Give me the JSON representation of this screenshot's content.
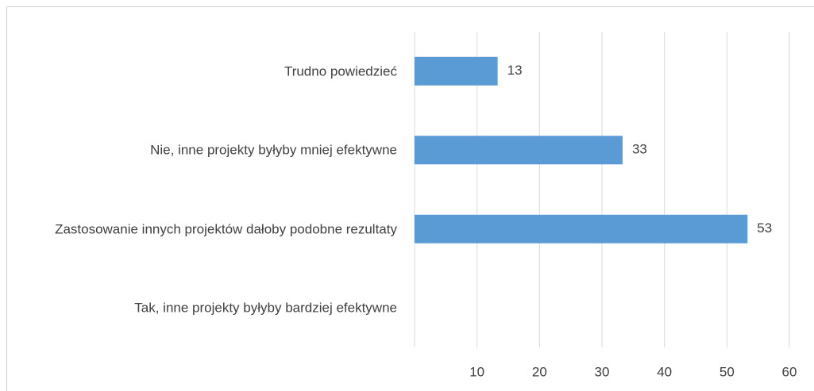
{
  "chart_data": {
    "type": "barh",
    "categories": [
      "Trudno powiedzieć",
      "Nie, inne projekty byłyby mniej efektywne",
      "Zastosowanie innych projektów dałoby podobne rezultaty",
      "Tak, inne projekty byłyby bardziej efektywne"
    ],
    "values": [
      13.3,
      33.3,
      53.3,
      null
    ],
    "value_labels": [
      "13",
      "33",
      "53",
      null
    ],
    "color": "#5b9bd5",
    "xlim": [
      0,
      60
    ],
    "xticks": [
      10,
      20,
      30,
      40,
      50,
      60
    ],
    "grid": true
  }
}
